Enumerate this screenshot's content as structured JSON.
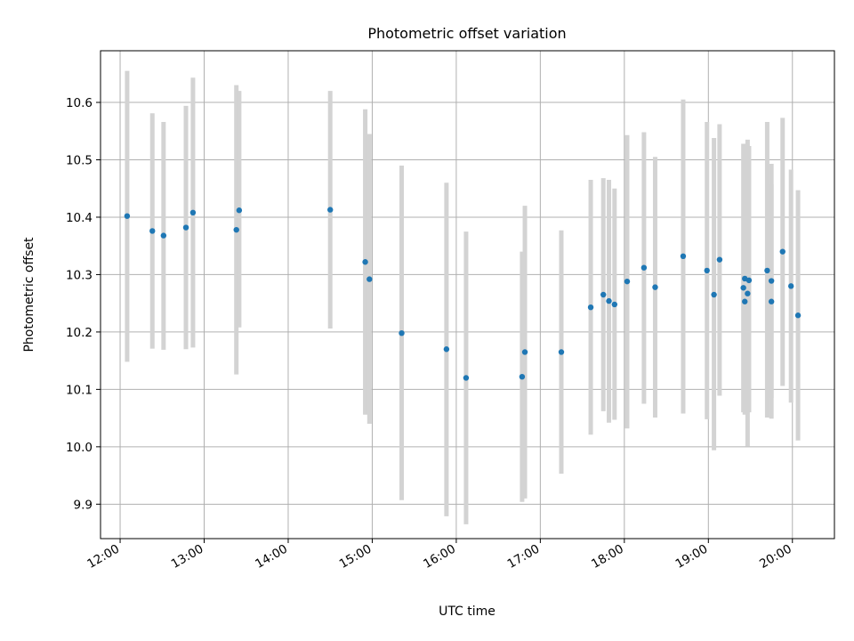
{
  "chart_data": {
    "type": "scatter",
    "title": "Photometric offset variation",
    "xlabel": "UTC time",
    "ylabel": "Photometric offset",
    "xlim": [
      "11:46",
      "20:30"
    ],
    "ylim": [
      9.84,
      10.69
    ],
    "x_ticks": [
      "12:00",
      "13:00",
      "14:00",
      "15:00",
      "16:00",
      "17:00",
      "18:00",
      "19:00",
      "20:00"
    ],
    "y_ticks": [
      "9.9",
      "10.0",
      "10.1",
      "10.2",
      "10.3",
      "10.4",
      "10.5",
      "10.6"
    ],
    "grid": true,
    "point_color": "#1f77b4",
    "errorbar_color": "#d3d3d3",
    "series": [
      {
        "points": [
          {
            "x": "12:05",
            "y": 10.402,
            "ylow": 10.148,
            "yhigh": 10.655
          },
          {
            "x": "12:23",
            "y": 10.376,
            "ylow": 10.171,
            "yhigh": 10.581
          },
          {
            "x": "12:31",
            "y": 10.368,
            "ylow": 10.169,
            "yhigh": 10.566
          },
          {
            "x": "12:47",
            "y": 10.382,
            "ylow": 10.17,
            "yhigh": 10.594
          },
          {
            "x": "12:52",
            "y": 10.408,
            "ylow": 10.173,
            "yhigh": 10.643
          },
          {
            "x": "13:23",
            "y": 10.378,
            "ylow": 10.126,
            "yhigh": 10.63
          },
          {
            "x": "13:25",
            "y": 10.412,
            "ylow": 10.208,
            "yhigh": 10.62
          },
          {
            "x": "14:30",
            "y": 10.413,
            "ylow": 10.206,
            "yhigh": 10.62
          },
          {
            "x": "14:55",
            "y": 10.322,
            "ylow": 10.056,
            "yhigh": 10.588
          },
          {
            "x": "14:58",
            "y": 10.292,
            "ylow": 10.04,
            "yhigh": 10.545
          },
          {
            "x": "15:21",
            "y": 10.198,
            "ylow": 9.907,
            "yhigh": 10.49
          },
          {
            "x": "15:53",
            "y": 10.17,
            "ylow": 9.879,
            "yhigh": 10.46
          },
          {
            "x": "16:07",
            "y": 10.12,
            "ylow": 9.865,
            "yhigh": 10.375
          },
          {
            "x": "16:47",
            "y": 10.122,
            "ylow": 9.904,
            "yhigh": 10.34
          },
          {
            "x": "16:49",
            "y": 10.165,
            "ylow": 9.91,
            "yhigh": 10.42
          },
          {
            "x": "17:15",
            "y": 10.165,
            "ylow": 9.953,
            "yhigh": 10.377
          },
          {
            "x": "17:36",
            "y": 10.243,
            "ylow": 10.021,
            "yhigh": 10.465
          },
          {
            "x": "17:45",
            "y": 10.265,
            "ylow": 10.062,
            "yhigh": 10.468
          },
          {
            "x": "17:49",
            "y": 10.254,
            "ylow": 10.042,
            "yhigh": 10.465
          },
          {
            "x": "17:53",
            "y": 10.248,
            "ylow": 10.047,
            "yhigh": 10.45
          },
          {
            "x": "18:02",
            "y": 10.288,
            "ylow": 10.032,
            "yhigh": 10.543
          },
          {
            "x": "18:14",
            "y": 10.312,
            "ylow": 10.075,
            "yhigh": 10.548
          },
          {
            "x": "18:22",
            "y": 10.278,
            "ylow": 10.051,
            "yhigh": 10.505
          },
          {
            "x": "18:42",
            "y": 10.332,
            "ylow": 10.058,
            "yhigh": 10.605
          },
          {
            "x": "18:59",
            "y": 10.307,
            "ylow": 10.048,
            "yhigh": 10.566
          },
          {
            "x": "19:04",
            "y": 10.265,
            "ylow": 9.994,
            "yhigh": 10.538
          },
          {
            "x": "19:08",
            "y": 10.326,
            "ylow": 10.089,
            "yhigh": 10.562
          },
          {
            "x": "19:25",
            "y": 10.277,
            "ylow": 10.06,
            "yhigh": 10.528
          },
          {
            "x": "19:26",
            "y": 10.293,
            "ylow": 10.056,
            "yhigh": 10.527
          },
          {
            "x": "19:26",
            "y": 10.253,
            "ylow": 10.085,
            "yhigh": 10.521
          },
          {
            "x": "19:28",
            "y": 10.267,
            "ylow": 10.001,
            "yhigh": 10.535
          },
          {
            "x": "19:29",
            "y": 10.29,
            "ylow": 10.06,
            "yhigh": 10.524
          },
          {
            "x": "19:42",
            "y": 10.307,
            "ylow": 10.051,
            "yhigh": 10.566
          },
          {
            "x": "19:45",
            "y": 10.253,
            "ylow": 10.049,
            "yhigh": 10.458
          },
          {
            "x": "19:45",
            "y": 10.289,
            "ylow": 10.085,
            "yhigh": 10.493
          },
          {
            "x": "19:53",
            "y": 10.34,
            "ylow": 10.106,
            "yhigh": 10.573
          },
          {
            "x": "19:59",
            "y": 10.28,
            "ylow": 10.077,
            "yhigh": 10.483
          },
          {
            "x": "20:04",
            "y": 10.229,
            "ylow": 10.011,
            "yhigh": 10.447
          }
        ]
      }
    ]
  }
}
